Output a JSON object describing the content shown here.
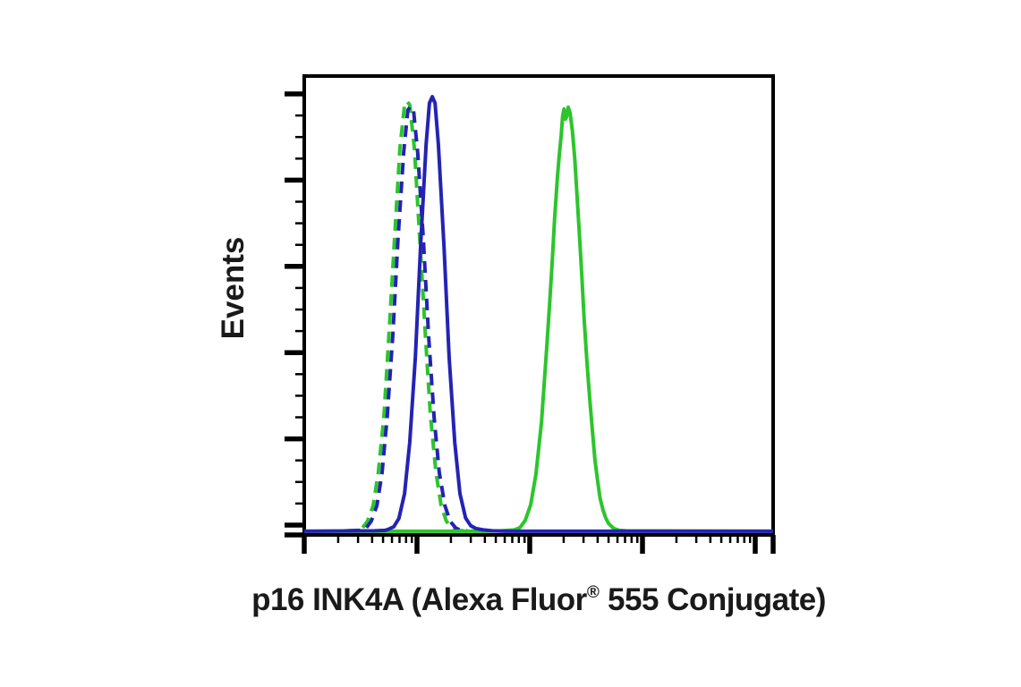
{
  "chart_data": {
    "type": "line",
    "subtype": "flow-cytometry-histogram-overlay",
    "title": "p16 INK4A (Alexa Fluor® 555 Conjugate)",
    "ylabel": "Events",
    "xlabel_parts": {
      "pre": "p16 INK4A (Alexa Fluor",
      "registered": "®",
      "post": " 555 Conjugate)"
    },
    "background": "#ffffff",
    "axis_color": "#000000",
    "x_axis": {
      "scale": "log",
      "decades": 4,
      "tick_labels": "none",
      "minor_ticks": "log positions 2-9 per decade"
    },
    "y_axis": {
      "scale": "linear",
      "major_ticks": 6,
      "minors_between_majors": 3,
      "tick_labels": "none"
    },
    "legend": "none",
    "series": [
      {
        "id": "green-dashed",
        "appearance": "green dashed peak (left, overlapping blue dashed)",
        "color": "#2cc52c",
        "dashed": true,
        "peak_u": 0.219,
        "peak_height": 0.945,
        "points": [
          [
            0.086,
            0.009
          ],
          [
            0.113,
            0.01
          ],
          [
            0.124,
            0.015
          ],
          [
            0.135,
            0.03
          ],
          [
            0.147,
            0.064
          ],
          [
            0.158,
            0.136
          ],
          [
            0.17,
            0.26
          ],
          [
            0.181,
            0.441
          ],
          [
            0.193,
            0.652
          ],
          [
            0.204,
            0.842
          ],
          [
            0.214,
            0.937
          ],
          [
            0.219,
            0.945
          ],
          [
            0.225,
            0.937
          ],
          [
            0.235,
            0.842
          ],
          [
            0.246,
            0.652
          ],
          [
            0.258,
            0.441
          ],
          [
            0.269,
            0.26
          ],
          [
            0.281,
            0.136
          ],
          [
            0.292,
            0.064
          ],
          [
            0.303,
            0.03
          ],
          [
            0.315,
            0.015
          ],
          [
            0.326,
            0.01
          ],
          [
            0.34,
            0.009
          ]
        ]
      },
      {
        "id": "blue-dashed",
        "appearance": "blue dashed peak (left, overlapping green dashed)",
        "color": "#2323b4",
        "dashed": true,
        "peak_u": 0.227,
        "peak_height": 0.934,
        "points": [
          [
            0.094,
            0.009
          ],
          [
            0.12,
            0.01
          ],
          [
            0.132,
            0.015
          ],
          [
            0.143,
            0.03
          ],
          [
            0.155,
            0.064
          ],
          [
            0.166,
            0.136
          ],
          [
            0.177,
            0.257
          ],
          [
            0.189,
            0.436
          ],
          [
            0.2,
            0.645
          ],
          [
            0.212,
            0.833
          ],
          [
            0.221,
            0.926
          ],
          [
            0.227,
            0.934
          ],
          [
            0.233,
            0.926
          ],
          [
            0.242,
            0.833
          ],
          [
            0.254,
            0.645
          ],
          [
            0.265,
            0.436
          ],
          [
            0.277,
            0.257
          ],
          [
            0.288,
            0.136
          ],
          [
            0.3,
            0.064
          ],
          [
            0.311,
            0.03
          ],
          [
            0.323,
            0.015
          ],
          [
            0.334,
            0.01
          ],
          [
            0.348,
            0.009
          ]
        ]
      },
      {
        "id": "green-solid",
        "appearance": "green solid peak (right, double-notched top)",
        "color": "#2cc52c",
        "dashed": false,
        "peak_u": 0.563,
        "peak_height": 0.932,
        "points": [
          [
            0.0,
            0.008
          ],
          [
            0.38,
            0.008
          ],
          [
            0.42,
            0.009
          ],
          [
            0.448,
            0.011
          ],
          [
            0.46,
            0.016
          ],
          [
            0.471,
            0.031
          ],
          [
            0.483,
            0.066
          ],
          [
            0.494,
            0.132
          ],
          [
            0.506,
            0.245
          ],
          [
            0.511,
            0.32
          ],
          [
            0.517,
            0.406
          ],
          [
            0.523,
            0.5
          ],
          [
            0.529,
            0.598
          ],
          [
            0.534,
            0.69
          ],
          [
            0.54,
            0.781
          ],
          [
            0.544,
            0.83
          ],
          [
            0.548,
            0.872
          ],
          [
            0.551,
            0.912
          ],
          [
            0.554,
            0.928
          ],
          [
            0.557,
            0.906
          ],
          [
            0.56,
            0.912
          ],
          [
            0.563,
            0.932
          ],
          [
            0.567,
            0.92
          ],
          [
            0.572,
            0.88
          ],
          [
            0.577,
            0.82
          ],
          [
            0.58,
            0.77
          ],
          [
            0.586,
            0.668
          ],
          [
            0.592,
            0.565
          ],
          [
            0.597,
            0.47
          ],
          [
            0.603,
            0.375
          ],
          [
            0.609,
            0.295
          ],
          [
            0.615,
            0.221
          ],
          [
            0.62,
            0.163
          ],
          [
            0.626,
            0.116
          ],
          [
            0.631,
            0.08
          ],
          [
            0.637,
            0.055
          ],
          [
            0.643,
            0.037
          ],
          [
            0.649,
            0.025
          ],
          [
            0.66,
            0.014
          ],
          [
            0.672,
            0.01
          ],
          [
            0.687,
            0.009
          ],
          [
            1.0,
            0.008
          ]
        ]
      },
      {
        "id": "blue-solid",
        "appearance": "blue solid peak (tallest, just right of dashed pair)",
        "color": "#2323b4",
        "dashed": false,
        "peak_u": 0.273,
        "peak_height": 0.955,
        "points": [
          [
            0.0,
            0.008
          ],
          [
            0.15,
            0.009
          ],
          [
            0.172,
            0.01
          ],
          [
            0.179,
            0.012
          ],
          [
            0.191,
            0.018
          ],
          [
            0.202,
            0.036
          ],
          [
            0.214,
            0.09
          ],
          [
            0.225,
            0.202
          ],
          [
            0.237,
            0.388
          ],
          [
            0.248,
            0.628
          ],
          [
            0.26,
            0.851
          ],
          [
            0.267,
            0.941
          ],
          [
            0.273,
            0.955
          ],
          [
            0.279,
            0.941
          ],
          [
            0.286,
            0.851
          ],
          [
            0.298,
            0.628
          ],
          [
            0.309,
            0.388
          ],
          [
            0.321,
            0.202
          ],
          [
            0.332,
            0.09
          ],
          [
            0.344,
            0.037
          ],
          [
            0.355,
            0.02
          ],
          [
            0.366,
            0.014
          ],
          [
            0.382,
            0.011
          ],
          [
            0.401,
            0.009
          ],
          [
            0.429,
            0.008
          ],
          [
            1.0,
            0.008
          ]
        ]
      }
    ]
  }
}
